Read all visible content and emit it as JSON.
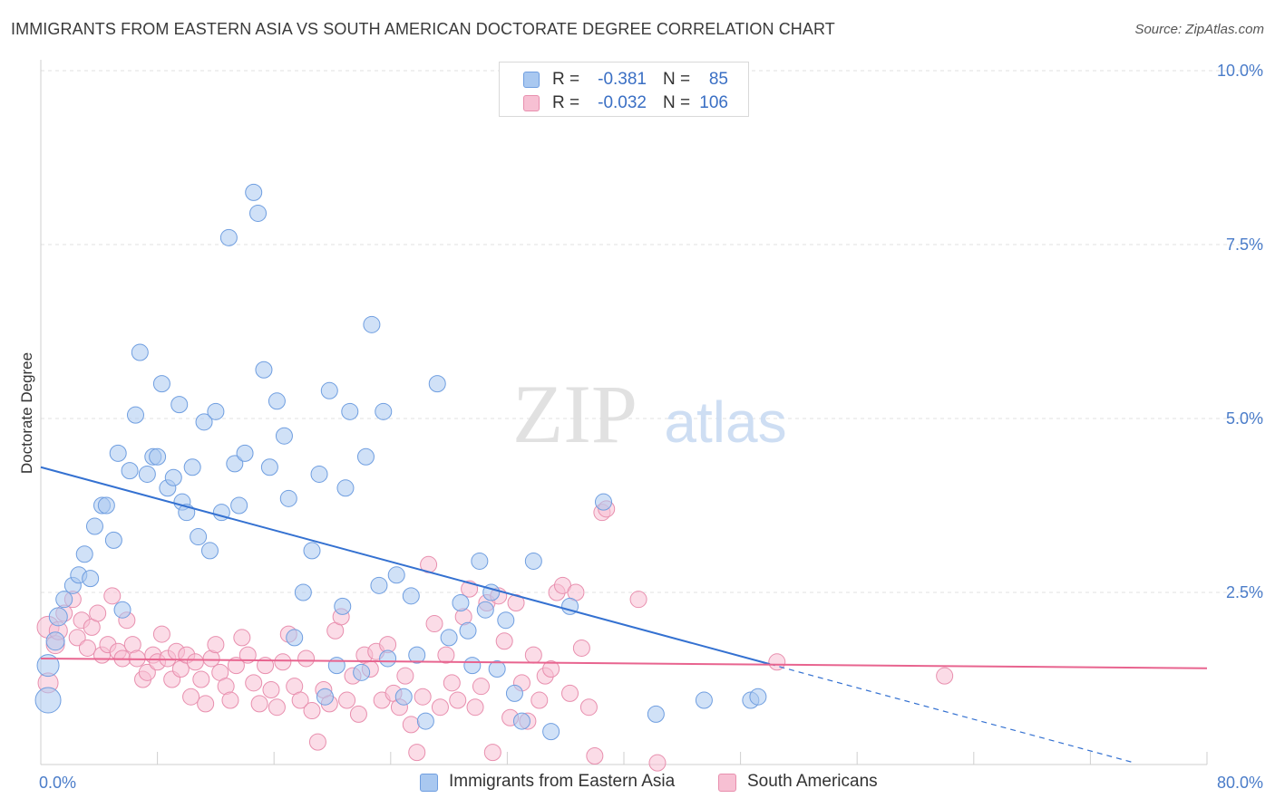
{
  "title": "IMMIGRANTS FROM EASTERN ASIA VS SOUTH AMERICAN DOCTORATE DEGREE CORRELATION CHART",
  "source": "Source: ZipAtlas.com",
  "watermark": {
    "zip": "ZIP",
    "atlas": "atlas"
  },
  "legend_top": [
    {
      "r_label": "R =",
      "r_value": "-0.381",
      "n_label": "N =",
      "n_value": "85",
      "color": "#a9c8f0",
      "border": "#6f9ee0"
    },
    {
      "r_label": "R =",
      "r_value": "-0.032",
      "n_label": "N =",
      "n_value": "106",
      "color": "#f7c0d3",
      "border": "#e88fae"
    }
  ],
  "legend_bottom": [
    {
      "label": "Immigrants from Eastern Asia",
      "color": "#a9c8f0",
      "border": "#6f9ee0"
    },
    {
      "label": "South Americans",
      "color": "#f7c0d3",
      "border": "#e88fae"
    }
  ],
  "chart_data": {
    "type": "scatter",
    "xlabel": "",
    "ylabel": "Doctorate Degree",
    "xlim": [
      0,
      80
    ],
    "ylim": [
      0,
      10.5
    ],
    "x_tick_labels": [
      {
        "value": 0,
        "label": "0.0%"
      },
      {
        "value": 80,
        "label": "80.0%"
      }
    ],
    "y_tick_labels": [
      {
        "value": 2.5,
        "label": "2.5%"
      },
      {
        "value": 5.0,
        "label": "5.0%"
      },
      {
        "value": 7.5,
        "label": "7.5%"
      },
      {
        "value": 10.0,
        "label": "10.0%"
      }
    ],
    "grid": true,
    "series": [
      {
        "name": "Immigrants from Eastern Asia",
        "color": "#a9c8f0",
        "stroke": "#6f9ee0",
        "trend": {
          "x": [
            0,
            50
          ],
          "y": [
            4.3,
            1.47
          ],
          "color": "#3471d1",
          "dashed_extension_to": [
            75,
            0
          ]
        },
        "points": [
          [
            0.5,
            0.95,
            14
          ],
          [
            0.5,
            1.45,
            12
          ],
          [
            1.0,
            1.8,
            10
          ],
          [
            1.2,
            2.15,
            10
          ],
          [
            1.6,
            2.4,
            9
          ],
          [
            2.2,
            2.6,
            9
          ],
          [
            2.6,
            2.75,
            9
          ],
          [
            3.0,
            3.05,
            9
          ],
          [
            3.4,
            2.7,
            9
          ],
          [
            3.7,
            3.45,
            9
          ],
          [
            4.2,
            3.75,
            9
          ],
          [
            4.5,
            3.75,
            9
          ],
          [
            5.0,
            3.25,
            9
          ],
          [
            5.3,
            4.5,
            9
          ],
          [
            5.6,
            2.25,
            9
          ],
          [
            6.1,
            4.25,
            9
          ],
          [
            6.5,
            5.05,
            9
          ],
          [
            6.8,
            5.95,
            9
          ],
          [
            7.3,
            4.2,
            9
          ],
          [
            7.7,
            4.45,
            9
          ],
          [
            8.0,
            4.45,
            9
          ],
          [
            8.3,
            5.5,
            9
          ],
          [
            8.7,
            4.0,
            9
          ],
          [
            9.1,
            4.15,
            9
          ],
          [
            9.5,
            5.2,
            9
          ],
          [
            9.7,
            3.8,
            9
          ],
          [
            10.0,
            3.65,
            9
          ],
          [
            10.4,
            4.3,
            9
          ],
          [
            10.8,
            3.3,
            9
          ],
          [
            11.2,
            4.95,
            9
          ],
          [
            11.6,
            3.1,
            9
          ],
          [
            12.0,
            5.1,
            9
          ],
          [
            12.4,
            3.65,
            9
          ],
          [
            12.9,
            7.6,
            9
          ],
          [
            13.3,
            4.35,
            9
          ],
          [
            13.6,
            3.75,
            9
          ],
          [
            14.0,
            4.5,
            9
          ],
          [
            14.6,
            8.25,
            9
          ],
          [
            14.9,
            7.95,
            9
          ],
          [
            15.3,
            5.7,
            9
          ],
          [
            15.7,
            4.3,
            9
          ],
          [
            16.2,
            5.25,
            9
          ],
          [
            16.7,
            4.75,
            9
          ],
          [
            17.0,
            3.85,
            9
          ],
          [
            17.4,
            1.85,
            9
          ],
          [
            18.0,
            2.5,
            9
          ],
          [
            18.6,
            3.1,
            9
          ],
          [
            19.1,
            4.2,
            9
          ],
          [
            19.5,
            1.0,
            9
          ],
          [
            19.8,
            5.4,
            9
          ],
          [
            20.3,
            1.45,
            9
          ],
          [
            20.7,
            2.3,
            9
          ],
          [
            20.9,
            4.0,
            9
          ],
          [
            21.2,
            5.1,
            9
          ],
          [
            22.0,
            1.35,
            9
          ],
          [
            22.3,
            4.45,
            9
          ],
          [
            22.7,
            6.35,
            9
          ],
          [
            23.2,
            2.6,
            9
          ],
          [
            23.5,
            5.1,
            9
          ],
          [
            23.8,
            1.55,
            9
          ],
          [
            24.4,
            2.75,
            9
          ],
          [
            24.9,
            1.0,
            9
          ],
          [
            25.4,
            2.45,
            9
          ],
          [
            25.8,
            1.6,
            9
          ],
          [
            26.4,
            0.65,
            9
          ],
          [
            27.2,
            5.5,
            9
          ],
          [
            28.0,
            1.85,
            9
          ],
          [
            28.8,
            2.35,
            9
          ],
          [
            29.3,
            1.95,
            9
          ],
          [
            29.6,
            1.45,
            9
          ],
          [
            30.1,
            2.95,
            9
          ],
          [
            30.5,
            2.25,
            9
          ],
          [
            30.9,
            2.5,
            9
          ],
          [
            31.3,
            1.4,
            9
          ],
          [
            31.9,
            2.1,
            9
          ],
          [
            32.5,
            1.05,
            9
          ],
          [
            33.0,
            0.65,
            9
          ],
          [
            33.8,
            2.95,
            9
          ],
          [
            35.0,
            0.5,
            9
          ],
          [
            36.3,
            2.3,
            9
          ],
          [
            38.6,
            3.8,
            9
          ],
          [
            42.2,
            0.75,
            9
          ],
          [
            45.5,
            0.95,
            9
          ],
          [
            48.7,
            0.95,
            9
          ],
          [
            49.2,
            1.0,
            9
          ]
        ]
      },
      {
        "name": "South Americans",
        "color": "#f7c0d3",
        "stroke": "#e88fae",
        "trend": {
          "x": [
            0,
            80
          ],
          "y": [
            1.55,
            1.41
          ],
          "color": "#e8648f"
        },
        "points": [
          [
            0.5,
            2.0,
            12
          ],
          [
            0.5,
            1.2,
            11
          ],
          [
            1.0,
            1.75,
            10
          ],
          [
            1.2,
            1.95,
            10
          ],
          [
            1.6,
            2.2,
            9
          ],
          [
            2.2,
            2.4,
            9
          ],
          [
            2.5,
            1.85,
            9
          ],
          [
            2.8,
            2.1,
            9
          ],
          [
            3.2,
            1.7,
            9
          ],
          [
            3.5,
            2.0,
            9
          ],
          [
            3.9,
            2.2,
            9
          ],
          [
            4.2,
            1.6,
            9
          ],
          [
            4.6,
            1.75,
            9
          ],
          [
            4.9,
            2.45,
            9
          ],
          [
            5.3,
            1.65,
            9
          ],
          [
            5.6,
            1.55,
            9
          ],
          [
            5.9,
            2.1,
            9
          ],
          [
            6.3,
            1.75,
            9
          ],
          [
            6.6,
            1.55,
            9
          ],
          [
            7.0,
            1.25,
            9
          ],
          [
            7.3,
            1.35,
            9
          ],
          [
            7.7,
            1.6,
            9
          ],
          [
            8.0,
            1.5,
            9
          ],
          [
            8.3,
            1.9,
            9
          ],
          [
            8.7,
            1.55,
            9
          ],
          [
            9.0,
            1.25,
            9
          ],
          [
            9.3,
            1.65,
            9
          ],
          [
            9.6,
            1.4,
            9
          ],
          [
            10.0,
            1.6,
            9
          ],
          [
            10.3,
            1.0,
            9
          ],
          [
            10.6,
            1.5,
            9
          ],
          [
            11.0,
            1.25,
            9
          ],
          [
            11.3,
            0.9,
            9
          ],
          [
            11.7,
            1.55,
            9
          ],
          [
            12.0,
            1.75,
            9
          ],
          [
            12.3,
            1.35,
            9
          ],
          [
            12.7,
            1.15,
            9
          ],
          [
            13.0,
            0.95,
            9
          ],
          [
            13.4,
            1.45,
            9
          ],
          [
            13.8,
            1.85,
            9
          ],
          [
            14.2,
            1.6,
            9
          ],
          [
            14.6,
            1.2,
            9
          ],
          [
            15.0,
            0.9,
            9
          ],
          [
            15.4,
            1.45,
            9
          ],
          [
            15.8,
            1.1,
            9
          ],
          [
            16.2,
            0.85,
            9
          ],
          [
            16.6,
            1.5,
            9
          ],
          [
            17.0,
            1.9,
            9
          ],
          [
            17.4,
            1.15,
            9
          ],
          [
            17.8,
            0.95,
            9
          ],
          [
            18.2,
            1.55,
            9
          ],
          [
            18.6,
            0.8,
            9
          ],
          [
            19.0,
            0.35,
            9
          ],
          [
            19.4,
            1.1,
            9
          ],
          [
            19.8,
            0.9,
            9
          ],
          [
            20.2,
            1.95,
            9
          ],
          [
            20.6,
            2.15,
            9
          ],
          [
            21.0,
            0.95,
            9
          ],
          [
            21.4,
            1.3,
            9
          ],
          [
            21.8,
            0.75,
            9
          ],
          [
            22.2,
            1.6,
            9
          ],
          [
            22.6,
            1.4,
            9
          ],
          [
            23.0,
            1.65,
            9
          ],
          [
            23.4,
            0.95,
            9
          ],
          [
            23.8,
            1.75,
            9
          ],
          [
            24.2,
            1.05,
            9
          ],
          [
            24.6,
            0.85,
            9
          ],
          [
            25.0,
            1.3,
            9
          ],
          [
            25.4,
            0.6,
            9
          ],
          [
            25.8,
            0.2,
            9
          ],
          [
            26.2,
            1.0,
            9
          ],
          [
            26.6,
            2.9,
            9
          ],
          [
            27.0,
            2.05,
            9
          ],
          [
            27.4,
            0.85,
            9
          ],
          [
            27.8,
            1.6,
            9
          ],
          [
            28.2,
            1.2,
            9
          ],
          [
            28.6,
            0.95,
            9
          ],
          [
            29.0,
            2.15,
            9
          ],
          [
            29.4,
            2.55,
            9
          ],
          [
            29.8,
            0.85,
            9
          ],
          [
            30.2,
            1.15,
            9
          ],
          [
            30.6,
            2.35,
            9
          ],
          [
            31.0,
            0.2,
            9
          ],
          [
            31.4,
            2.45,
            9
          ],
          [
            31.8,
            1.8,
            9
          ],
          [
            32.2,
            0.7,
            9
          ],
          [
            32.6,
            2.35,
            9
          ],
          [
            33.0,
            1.2,
            9
          ],
          [
            33.4,
            0.65,
            9
          ],
          [
            33.8,
            1.6,
            9
          ],
          [
            34.2,
            0.95,
            9
          ],
          [
            34.6,
            1.3,
            9
          ],
          [
            35.0,
            1.4,
            9
          ],
          [
            35.4,
            2.5,
            9
          ],
          [
            35.8,
            2.6,
            9
          ],
          [
            36.3,
            1.05,
            9
          ],
          [
            36.7,
            2.5,
            9
          ],
          [
            37.1,
            1.7,
            9
          ],
          [
            37.6,
            0.85,
            9
          ],
          [
            38.0,
            0.15,
            9
          ],
          [
            38.5,
            3.65,
            9
          ],
          [
            38.8,
            3.7,
            9
          ],
          [
            41.0,
            2.4,
            9
          ],
          [
            42.3,
            0.05,
            9
          ],
          [
            50.5,
            1.5,
            9
          ],
          [
            62.0,
            1.3,
            9
          ]
        ]
      }
    ]
  }
}
